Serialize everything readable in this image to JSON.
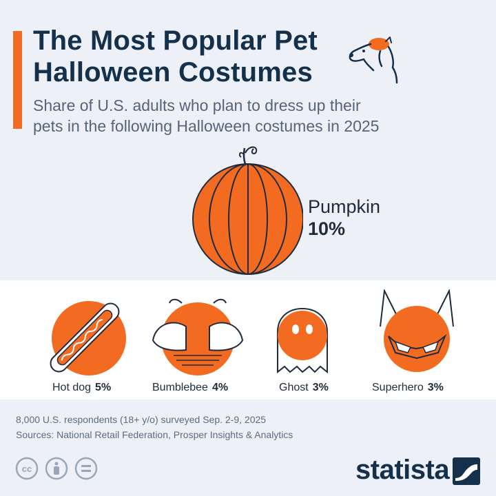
{
  "header": {
    "title_line1": "The Most Popular Pet",
    "title_line2": "Halloween Costumes",
    "subtitle_line1": "Share of U.S. adults who plan to dress up their",
    "subtitle_line2": "pets in the following Halloween costumes in 2025"
  },
  "chart_data": {
    "type": "bar",
    "categories": [
      "Pumpkin",
      "Hot dog",
      "Bumblebee",
      "Ghost",
      "Superhero"
    ],
    "values": [
      10,
      5,
      4,
      3,
      3
    ],
    "value_labels": [
      "10%",
      "5%",
      "4%",
      "3%",
      "3%"
    ],
    "unit": "%",
    "title": "The Most Popular Pet Halloween Costumes"
  },
  "footer": {
    "note": "8,000 U.S. respondents (18+ y/o) surveyed Sep. 2-9, 2025",
    "sources": "Sources: National Retail Federation, Prosper Insights & Analytics",
    "brand": "statista"
  },
  "icons": {
    "dog": "dog-with-beret-icon",
    "pumpkin": "pumpkin-icon",
    "hotdog": "hot-dog-icon",
    "bee": "bumblebee-icon",
    "ghost": "ghost-icon",
    "hero": "superhero-mask-icon",
    "license": [
      "creative-commons-icon",
      "attribution-icon",
      "no-derivatives-icon"
    ],
    "logo": "statista-logo-icon"
  },
  "colors": {
    "accent": "#f26b21",
    "navy": "#14304a",
    "text": "#1f2b3c",
    "muted": "#5d6b80"
  }
}
